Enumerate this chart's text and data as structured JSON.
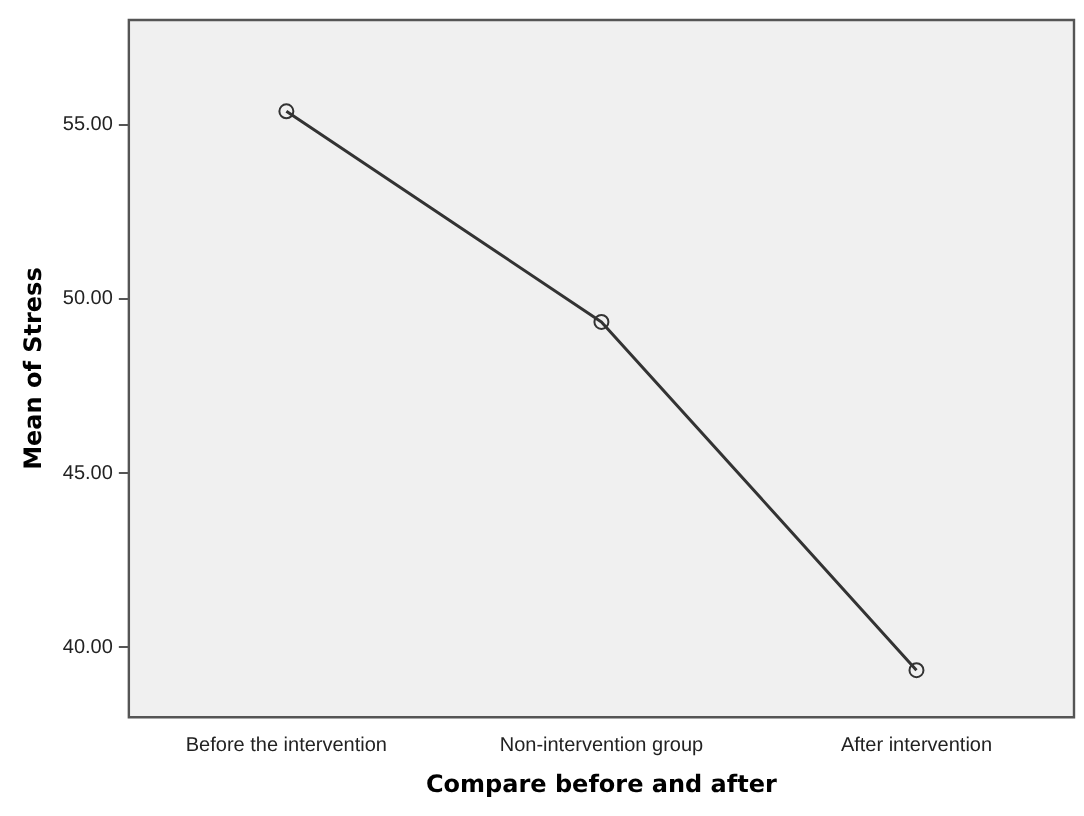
{
  "chart_data": {
    "type": "line",
    "xlabel": "Compare before and after",
    "ylabel": "Mean of Stress",
    "categories": [
      "Before the intervention",
      "Non-intervention group",
      "After intervention"
    ],
    "series": [
      {
        "color": "#333333",
        "values": [
          55.38,
          49.34,
          39.35
        ]
      }
    ],
    "ylim": [
      38,
      58
    ],
    "yticks": [
      {
        "value": 40,
        "label": "40.00"
      },
      {
        "value": 45,
        "label": "45.00"
      },
      {
        "value": 50,
        "label": "50.00"
      },
      {
        "value": 55,
        "label": "55.00"
      }
    ],
    "grid": false,
    "legend": false,
    "marker": "circle",
    "line_style": "solid"
  }
}
